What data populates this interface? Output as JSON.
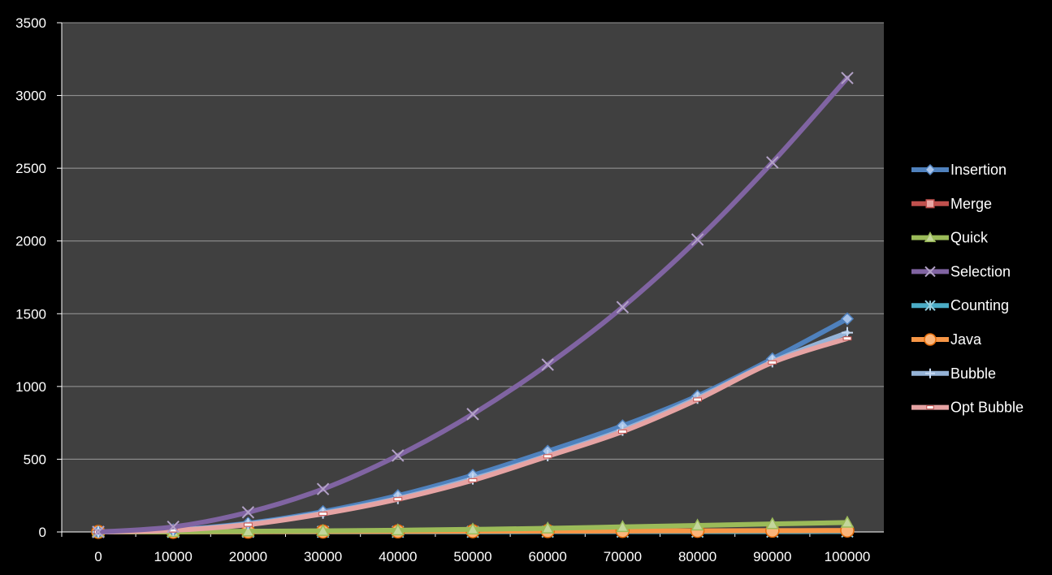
{
  "chart_data": {
    "type": "line",
    "title": "",
    "xlabel": "",
    "ylabel": "",
    "x": [
      0,
      10000,
      20000,
      30000,
      40000,
      50000,
      60000,
      70000,
      80000,
      90000,
      100000
    ],
    "ylim": [
      0,
      3500
    ],
    "yticks": [
      0,
      500,
      1000,
      1500,
      2000,
      2500,
      3000,
      3500
    ],
    "grid": true,
    "legend_position": "right",
    "series": [
      {
        "name": "Insertion",
        "color": "#4f81bd",
        "marker": "diamond",
        "values": [
          0,
          15,
          60,
          140,
          250,
          390,
          555,
          730,
          935,
          1190,
          1465
        ]
      },
      {
        "name": "Merge",
        "color": "#c0504d",
        "marker": "square",
        "values": [
          0,
          1,
          2,
          3,
          4,
          5,
          6,
          7,
          8,
          9,
          10
        ]
      },
      {
        "name": "Quick",
        "color": "#9bbb59",
        "marker": "triangle",
        "values": [
          0,
          1,
          5,
          8,
          12,
          18,
          25,
          35,
          45,
          55,
          65
        ]
      },
      {
        "name": "Selection",
        "color": "#8064a2",
        "marker": "x",
        "values": [
          0,
          35,
          135,
          295,
          525,
          810,
          1150,
          1545,
          2010,
          2540,
          3120
        ]
      },
      {
        "name": "Counting",
        "color": "#4bacc6",
        "marker": "asterisk",
        "values": [
          0,
          0,
          1,
          1,
          1,
          1,
          2,
          2,
          2,
          2,
          3
        ]
      },
      {
        "name": "Java",
        "color": "#f79646",
        "marker": "circle",
        "values": [
          0,
          1,
          2,
          3,
          4,
          5,
          6,
          7,
          8,
          9,
          10
        ]
      },
      {
        "name": "Bubble",
        "color": "#95b3d7",
        "marker": "plus",
        "values": [
          0,
          12,
          55,
          130,
          230,
          365,
          525,
          700,
          920,
          1170,
          1370
        ]
      },
      {
        "name": "Opt Bubble",
        "color": "#e6a3a3",
        "marker": "dash",
        "values": [
          0,
          11,
          50,
          125,
          225,
          355,
          520,
          690,
          910,
          1165,
          1330
        ]
      }
    ]
  }
}
